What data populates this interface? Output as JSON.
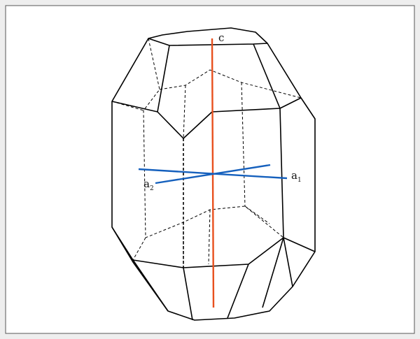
{
  "axes": [
    {
      "label": "c"
    },
    {
      "label": "a",
      "subscript": "1"
    },
    {
      "label": "a",
      "subscript": "2"
    }
  ]
}
